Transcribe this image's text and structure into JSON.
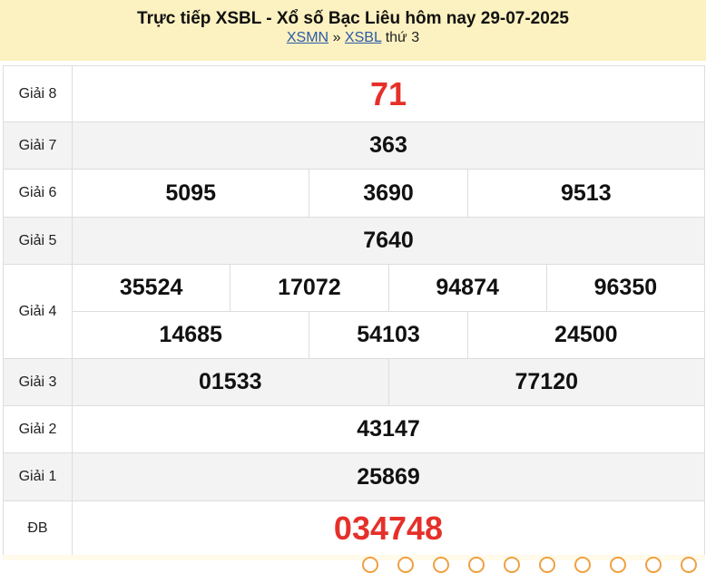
{
  "header": {
    "title": "Trực tiếp XSBL - Xổ số Bạc Liêu hôm nay 29-07-2025",
    "crumb1": "XSMN",
    "sep": "»",
    "crumb2": "XSBL",
    "day": "thứ 3"
  },
  "prizes": [
    {
      "label": "Giải 8",
      "numbers": [
        "71"
      ]
    },
    {
      "label": "Giải 7",
      "numbers": [
        "363"
      ]
    },
    {
      "label": "Giải 6",
      "numbers": [
        "5095",
        "3690",
        "9513"
      ]
    },
    {
      "label": "Giải 5",
      "numbers": [
        "7640"
      ]
    },
    {
      "label": "Giải 4",
      "numbers": [
        "35524",
        "17072",
        "94874",
        "96350",
        "14685",
        "54103",
        "24500"
      ]
    },
    {
      "label": "Giải 3",
      "numbers": [
        "01533",
        "77120"
      ]
    },
    {
      "label": "Giải 2",
      "numbers": [
        "43147"
      ]
    },
    {
      "label": "Giải 1",
      "numbers": [
        "25869"
      ]
    },
    {
      "label": "ĐB",
      "numbers": [
        "034748"
      ]
    }
  ],
  "colors": {
    "header_bg": "#fcf1c0",
    "highlight": "#e5302a",
    "link": "#2b5aa8"
  }
}
